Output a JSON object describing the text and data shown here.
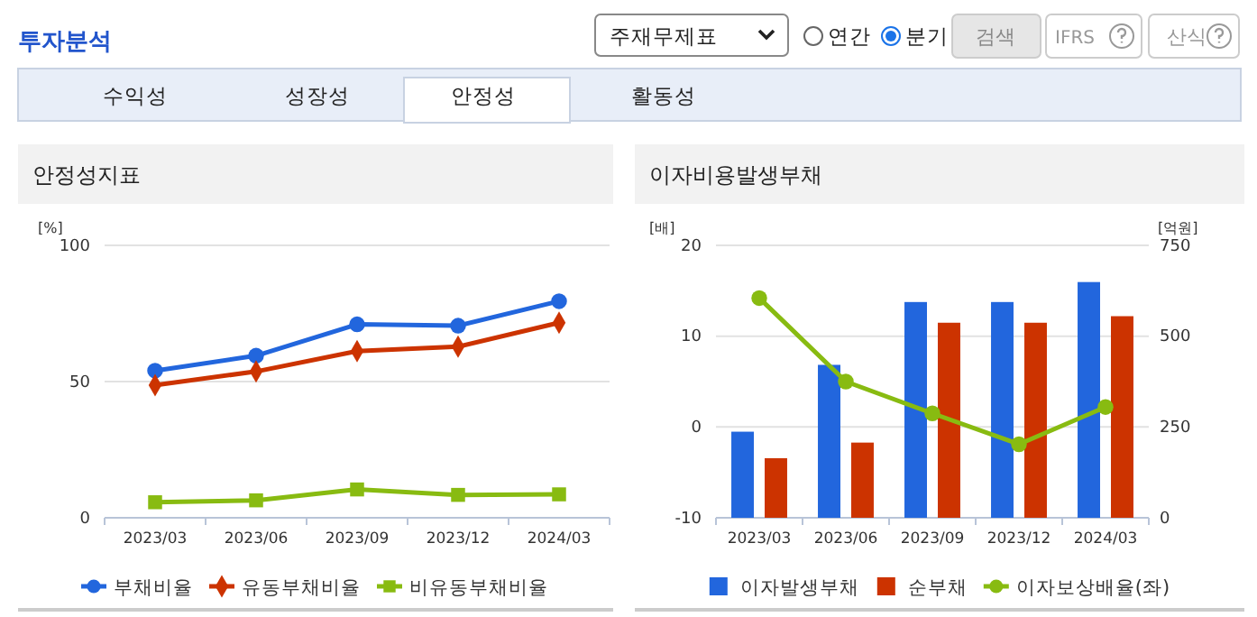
{
  "chart_data": [
    {
      "type": "other",
      "annotations": [
        "투자분석",
        "주재무제표",
        "연간",
        "분기",
        "검색",
        "IFRS",
        "산식",
        "수익성",
        "성장성",
        "안정성",
        "활동성"
      ]
    },
    {
      "type": "line",
      "title": "안정성지표",
      "ylabel": "[%]",
      "categories": [
        "2023/03",
        "2023/06",
        "2023/09",
        "2023/12",
        "2024/03"
      ],
      "ylim": [
        0,
        100
      ],
      "yticks": [
        0,
        50,
        100
      ],
      "grid": "y",
      "legend": "bottom",
      "series": [
        {
          "name": "부채비율",
          "color": "#2266dd",
          "marker": "circle",
          "values": [
            54,
            59.5,
            71,
            70.5,
            79.5
          ]
        },
        {
          "name": "유동부채비율",
          "color": "#cc3300",
          "marker": "diamond",
          "values": [
            48.7,
            53.7,
            61.2,
            62.8,
            71.6
          ]
        },
        {
          "name": "비유동부채비율",
          "color": "#88bb11",
          "marker": "square",
          "values": [
            5.7,
            6.4,
            10.4,
            8.4,
            8.6
          ]
        }
      ]
    },
    {
      "type": "bar",
      "title": "이자비용발생부채",
      "ylabel": "[배]",
      "y2label": "[억원]",
      "categories": [
        "2023/03",
        "2023/06",
        "2023/09",
        "2023/12",
        "2024/03"
      ],
      "ylim": [
        -10,
        20
      ],
      "yticks": [
        -10,
        0,
        10,
        20
      ],
      "y2lim": [
        0,
        750
      ],
      "y2ticks": [
        0,
        250,
        500,
        750
      ],
      "grid": "y",
      "legend": "bottom",
      "series": [
        {
          "name": "이자발생부채",
          "type": "bar",
          "axis": "y2",
          "color": "#2266dd",
          "values": [
            237,
            421,
            594,
            594,
            649
          ]
        },
        {
          "name": "순부채",
          "type": "bar",
          "axis": "y2",
          "color": "#cc3300",
          "values": [
            164,
            207,
            537,
            537,
            555
          ]
        },
        {
          "name": "이자보상배율(좌)",
          "type": "line",
          "axis": "y",
          "color": "#88bb11",
          "marker": "circle",
          "values": [
            14.2,
            5.0,
            1.5,
            -1.9,
            2.2
          ]
        }
      ]
    }
  ]
}
